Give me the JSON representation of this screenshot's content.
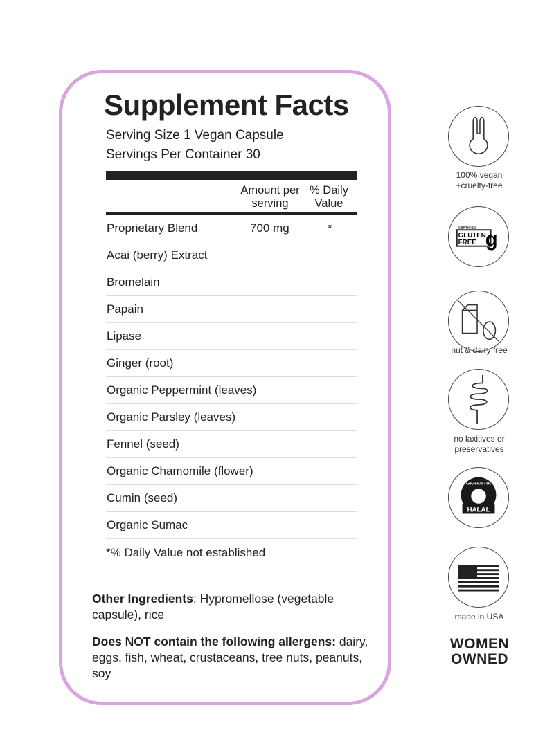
{
  "title": "Supplement Facts",
  "serving_size": "Serving Size 1 Vegan Capsule",
  "servings_per_container": "Servings Per Container 30",
  "header": {
    "amount_1": "Amount per",
    "amount_2": "serving",
    "dv_1": "% Daily",
    "dv_2": "Value"
  },
  "rows": [
    {
      "name": "Proprietary Blend",
      "amount": "700 mg",
      "dv": "*"
    },
    {
      "name": "Acai (berry) Extract"
    },
    {
      "name": "Bromelain"
    },
    {
      "name": "Papain"
    },
    {
      "name": "Lipase"
    },
    {
      "name": "Ginger (root)"
    },
    {
      "name": "Organic Peppermint (leaves)"
    },
    {
      "name": "Organic Parsley (leaves)"
    },
    {
      "name": "Fennel (seed)"
    },
    {
      "name": "Organic Chamomile (flower)"
    },
    {
      "name": "Cumin (seed)"
    },
    {
      "name": "Organic Sumac"
    }
  ],
  "footnote": "*% Daily Value not established",
  "other_ingredients": {
    "label": "Other Ingredients",
    "text": ": Hypromellose (vegetable capsule), rice"
  },
  "allergens": {
    "label": "Does NOT contain the following allergens:",
    "text": " dairy, eggs, fish, wheat, crustaceans, tree nuts, peanuts, soy"
  },
  "badges": [
    {
      "icon": "bunny-icon",
      "label_1": "100% vegan",
      "label_2": "+cruelty-free"
    },
    {
      "icon": "gluten-free-icon",
      "logo_text": "CERTIFIED GLUTEN FREE"
    },
    {
      "icon": "nut-dairy-free-icon",
      "label_1": "nut & dairy free"
    },
    {
      "icon": "intestine-icon",
      "label_1": "no laxitives or",
      "label_2": "preservatives"
    },
    {
      "icon": "halal-icon",
      "logo_text": "GARANTIA HALAL"
    },
    {
      "icon": "usa-flag-icon",
      "label_1": "made in USA"
    }
  ],
  "women_owned": {
    "line_1": "WOMEN",
    "line_2": "OWNED"
  },
  "colors": {
    "border": "#d8a5df",
    "text": "#222222"
  }
}
